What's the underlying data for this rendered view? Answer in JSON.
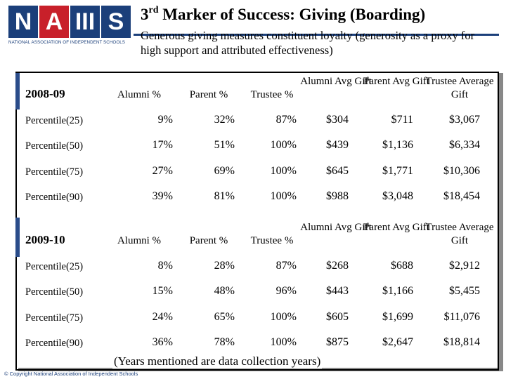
{
  "logo": {
    "letters": [
      "N",
      "A",
      "III",
      "S"
    ],
    "subtitle": "NATIONAL ASSOCIATION OF INDEPENDENT SCHOOLS"
  },
  "title": {
    "prefix": "3",
    "sup": "rd",
    "rest": " Marker of Success: Giving (Boarding)"
  },
  "subtitle": "Generous giving measures constituent loyalty (generosity as a proxy for high support and attributed effectiveness)",
  "columns": [
    "Alumni %",
    "Parent %",
    "Trustee %",
    "Alumni Avg Gift",
    "Parent Avg Gift",
    "Trustee Average Gift"
  ],
  "sections": [
    {
      "year": "2008-09",
      "rows": [
        {
          "label": "Percentile(25)",
          "values": [
            "9%",
            "32%",
            "87%",
            "$304",
            "$711",
            "$3,067"
          ]
        },
        {
          "label": "Percentile(50)",
          "values": [
            "17%",
            "51%",
            "100%",
            "$439",
            "$1,136",
            "$6,334"
          ]
        },
        {
          "label": "Percentile(75)",
          "values": [
            "27%",
            "69%",
            "100%",
            "$645",
            "$1,771",
            "$10,306"
          ]
        },
        {
          "label": "Percentile(90)",
          "values": [
            "39%",
            "81%",
            "100%",
            "$988",
            "$3,048",
            "$18,454"
          ]
        }
      ]
    },
    {
      "year": "2009-10",
      "rows": [
        {
          "label": "Percentile(25)",
          "values": [
            "8%",
            "28%",
            "87%",
            "$268",
            "$688",
            "$2,912"
          ]
        },
        {
          "label": "Percentile(50)",
          "values": [
            "15%",
            "48%",
            "96%",
            "$443",
            "$1,166",
            "$5,455"
          ]
        },
        {
          "label": "Percentile(75)",
          "values": [
            "24%",
            "65%",
            "100%",
            "$605",
            "$1,699",
            "$11,076"
          ]
        },
        {
          "label": "Percentile(90)",
          "values": [
            "36%",
            "78%",
            "100%",
            "$875",
            "$2,647",
            "$18,814"
          ]
        }
      ]
    }
  ],
  "footnote": "(Years mentioned are data collection years)",
  "copyright": "© Copyright National Association of Independent Schools",
  "colors": {
    "navy": "#1b3f7a",
    "red": "#c8202a"
  }
}
